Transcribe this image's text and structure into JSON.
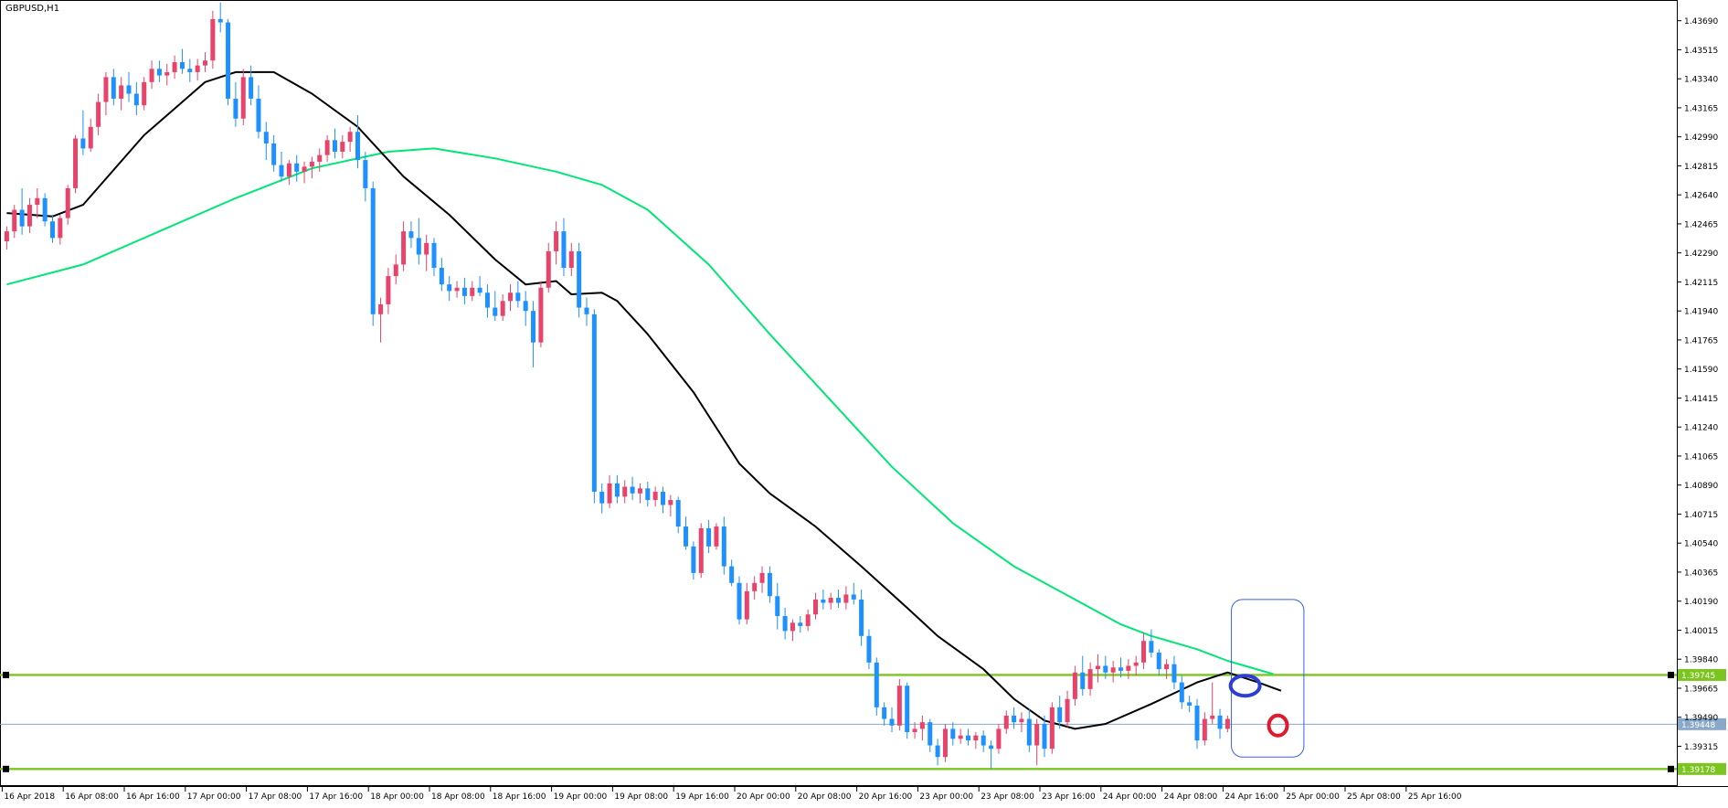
{
  "window": {
    "title": "GBPUSD,H1"
  },
  "colors": {
    "background": "#ffffff",
    "bull": "#e8436a",
    "bear": "#1e90ff",
    "ma_fast": "#000000",
    "ma_slow": "#00e676",
    "level_line": "#7cc520",
    "bid_line": "#8aa8c8",
    "annotation_box": "#3a5fe8",
    "annotation_circle_blue": "#2b3fd4",
    "annotation_circle_red": "#e01a2a",
    "grid_text": "#000000"
  },
  "chart_data": {
    "type": "candlestick",
    "symbol": "GBPUSD",
    "timeframe": "H1",
    "ylim": [
      1.39075,
      1.43815
    ],
    "y_ticks": [
      "1.43690",
      "1.43515",
      "1.43340",
      "1.43165",
      "1.42990",
      "1.42815",
      "1.42640",
      "1.42465",
      "1.42290",
      "1.42115",
      "1.41940",
      "1.41765",
      "1.41590",
      "1.41415",
      "1.41240",
      "1.41065",
      "1.40890",
      "1.40715",
      "1.40540",
      "1.40365",
      "1.40190",
      "1.40015",
      "1.39840",
      "1.39665",
      "1.39490",
      "1.39315"
    ],
    "x_ticks": [
      "16 Apr 2018",
      "16 Apr 08:00",
      "16 Apr 16:00",
      "17 Apr 00:00",
      "17 Apr 08:00",
      "17 Apr 16:00",
      "18 Apr 00:00",
      "18 Apr 08:00",
      "18 Apr 16:00",
      "19 Apr 00:00",
      "19 Apr 08:00",
      "19 Apr 16:00",
      "20 Apr 00:00",
      "20 Apr 08:00",
      "20 Apr 16:00",
      "23 Apr 00:00",
      "23 Apr 08:00",
      "23 Apr 16:00",
      "24 Apr 00:00",
      "24 Apr 08:00",
      "24 Apr 16:00",
      "25 Apr 00:00",
      "25 Apr 08:00",
      "25 Apr 16:00"
    ],
    "bars_per_tick": 8,
    "horizontal_levels": [
      {
        "value": 1.39745,
        "label": "1.39745",
        "kind": "level"
      },
      {
        "value": 1.39178,
        "label": "1.39178",
        "kind": "level"
      },
      {
        "value": 1.39448,
        "label": "1.39448",
        "kind": "bid"
      }
    ],
    "candles": [
      [
        1.4236,
        1.4245,
        1.4231,
        1.4242
      ],
      [
        1.4242,
        1.4258,
        1.4238,
        1.4255
      ],
      [
        1.4255,
        1.4268,
        1.424,
        1.4245
      ],
      [
        1.4245,
        1.4262,
        1.4241,
        1.4258
      ],
      [
        1.4258,
        1.4268,
        1.425,
        1.4262
      ],
      [
        1.4262,
        1.4265,
        1.4245,
        1.4248
      ],
      [
        1.4248,
        1.4252,
        1.4235,
        1.4238
      ],
      [
        1.4238,
        1.4252,
        1.4234,
        1.425
      ],
      [
        1.425,
        1.427,
        1.4246,
        1.4268
      ],
      [
        1.4268,
        1.43,
        1.4265,
        1.4298
      ],
      [
        1.4298,
        1.4315,
        1.4288,
        1.4292
      ],
      [
        1.4292,
        1.431,
        1.429,
        1.4305
      ],
      [
        1.4305,
        1.4325,
        1.43,
        1.432
      ],
      [
        1.432,
        1.4338,
        1.4312,
        1.4335
      ],
      [
        1.4335,
        1.434,
        1.4318,
        1.4322
      ],
      [
        1.4322,
        1.4335,
        1.4315,
        1.433
      ],
      [
        1.433,
        1.4338,
        1.432,
        1.4325
      ],
      [
        1.4325,
        1.4332,
        1.4312,
        1.4318
      ],
      [
        1.4318,
        1.4335,
        1.4315,
        1.4332
      ],
      [
        1.4332,
        1.4345,
        1.4328,
        1.434
      ],
      [
        1.434,
        1.4345,
        1.4332,
        1.4336
      ],
      [
        1.4336,
        1.4343,
        1.433,
        1.4338
      ],
      [
        1.4338,
        1.4348,
        1.4334,
        1.4344
      ],
      [
        1.4344,
        1.4352,
        1.4337,
        1.434
      ],
      [
        1.434,
        1.4346,
        1.4332,
        1.4338
      ],
      [
        1.4338,
        1.4346,
        1.4333,
        1.4342
      ],
      [
        1.4342,
        1.435,
        1.4338,
        1.4345
      ],
      [
        1.4345,
        1.4375,
        1.434,
        1.437
      ],
      [
        1.437,
        1.438,
        1.4362,
        1.4368
      ],
      [
        1.4368,
        1.437,
        1.4318,
        1.4322
      ],
      [
        1.4322,
        1.4332,
        1.4305,
        1.431
      ],
      [
        1.431,
        1.434,
        1.4306,
        1.4335
      ],
      [
        1.4335,
        1.4342,
        1.4318,
        1.4322
      ],
      [
        1.4322,
        1.433,
        1.4298,
        1.4302
      ],
      [
        1.4302,
        1.4308,
        1.4285,
        1.4295
      ],
      [
        1.4295,
        1.43,
        1.4278,
        1.4282
      ],
      [
        1.4282,
        1.429,
        1.4272,
        1.4275
      ],
      [
        1.4275,
        1.4285,
        1.427,
        1.4283
      ],
      [
        1.4283,
        1.4288,
        1.4272,
        1.4278
      ],
      [
        1.4278,
        1.4284,
        1.4271,
        1.4281
      ],
      [
        1.4281,
        1.4287,
        1.4274,
        1.4284
      ],
      [
        1.4284,
        1.4292,
        1.4278,
        1.4288
      ],
      [
        1.4288,
        1.43,
        1.4284,
        1.4297
      ],
      [
        1.4297,
        1.4304,
        1.4286,
        1.429
      ],
      [
        1.429,
        1.43,
        1.4286,
        1.4296
      ],
      [
        1.4296,
        1.4305,
        1.429,
        1.4302
      ],
      [
        1.4302,
        1.4312,
        1.428,
        1.4285
      ],
      [
        1.4285,
        1.429,
        1.426,
        1.4268
      ],
      [
        1.4268,
        1.4272,
        1.4185,
        1.4192
      ],
      [
        1.4192,
        1.4202,
        1.4175,
        1.4198
      ],
      [
        1.4198,
        1.422,
        1.4192,
        1.4215
      ],
      [
        1.4215,
        1.4228,
        1.421,
        1.4222
      ],
      [
        1.4222,
        1.4248,
        1.4218,
        1.4242
      ],
      [
        1.4242,
        1.4248,
        1.4232,
        1.4238
      ],
      [
        1.4238,
        1.425,
        1.4222,
        1.4228
      ],
      [
        1.4228,
        1.424,
        1.4218,
        1.4235
      ],
      [
        1.4235,
        1.4238,
        1.4215,
        1.422
      ],
      [
        1.422,
        1.4226,
        1.4206,
        1.421
      ],
      [
        1.421,
        1.4215,
        1.42,
        1.4206
      ],
      [
        1.4206,
        1.4212,
        1.4202,
        1.4208
      ],
      [
        1.4208,
        1.4214,
        1.4198,
        1.4203
      ],
      [
        1.4203,
        1.4212,
        1.42,
        1.4208
      ],
      [
        1.4208,
        1.4215,
        1.4203,
        1.4205
      ],
      [
        1.4205,
        1.421,
        1.419,
        1.4196
      ],
      [
        1.4196,
        1.4206,
        1.4188,
        1.4191
      ],
      [
        1.4191,
        1.4204,
        1.4188,
        1.42
      ],
      [
        1.42,
        1.421,
        1.4194,
        1.4205
      ],
      [
        1.4205,
        1.4212,
        1.4196,
        1.42
      ],
      [
        1.42,
        1.4206,
        1.4185,
        1.4194
      ],
      [
        1.4194,
        1.42,
        1.416,
        1.4175
      ],
      [
        1.4175,
        1.4212,
        1.4172,
        1.4208
      ],
      [
        1.4208,
        1.4235,
        1.4205,
        1.423
      ],
      [
        1.423,
        1.4248,
        1.4222,
        1.4242
      ],
      [
        1.4242,
        1.425,
        1.4215,
        1.422
      ],
      [
        1.422,
        1.4235,
        1.4215,
        1.423
      ],
      [
        1.423,
        1.4235,
        1.419,
        1.4196
      ],
      [
        1.4196,
        1.4202,
        1.4185,
        1.4192
      ],
      [
        1.4192,
        1.4195,
        1.4078,
        1.4085
      ],
      [
        1.4085,
        1.409,
        1.4072,
        1.4078
      ],
      [
        1.4078,
        1.4095,
        1.4075,
        1.409
      ],
      [
        1.409,
        1.4095,
        1.4078,
        1.4082
      ],
      [
        1.4082,
        1.4092,
        1.4078,
        1.4088
      ],
      [
        1.4088,
        1.4094,
        1.408,
        1.4084
      ],
      [
        1.4084,
        1.409,
        1.4078,
        1.4087
      ],
      [
        1.4087,
        1.4091,
        1.4076,
        1.408
      ],
      [
        1.408,
        1.4088,
        1.4076,
        1.4085
      ],
      [
        1.4085,
        1.4088,
        1.4072,
        1.4077
      ],
      [
        1.4077,
        1.4083,
        1.407,
        1.408
      ],
      [
        1.408,
        1.4082,
        1.406,
        1.4064
      ],
      [
        1.4064,
        1.407,
        1.405,
        1.4052
      ],
      [
        1.4052,
        1.4055,
        1.4032,
        1.4036
      ],
      [
        1.4036,
        1.4066,
        1.4033,
        1.4063
      ],
      [
        1.4063,
        1.4068,
        1.4048,
        1.4052
      ],
      [
        1.4052,
        1.4066,
        1.405,
        1.4064
      ],
      [
        1.4064,
        1.407,
        1.4035,
        1.404
      ],
      [
        1.404,
        1.4044,
        1.4028,
        1.403
      ],
      [
        1.403,
        1.4034,
        1.4005,
        1.4008
      ],
      [
        1.4008,
        1.403,
        1.4005,
        1.4025
      ],
      [
        1.4025,
        1.4034,
        1.402,
        1.403
      ],
      [
        1.403,
        1.404,
        1.4024,
        1.4036
      ],
      [
        1.4036,
        1.404,
        1.4018,
        1.4022
      ],
      [
        1.4022,
        1.403,
        1.4002,
        1.401
      ],
      [
        1.401,
        1.4015,
        1.3996,
        1.4001
      ],
      [
        1.4001,
        1.4008,
        1.3995,
        1.4006
      ],
      [
        1.4006,
        1.401,
        1.4,
        1.4004
      ],
      [
        1.4004,
        1.4014,
        1.4001,
        1.4011
      ],
      [
        1.4011,
        1.4024,
        1.4008,
        1.402
      ],
      [
        1.402,
        1.4026,
        1.4014,
        1.4018
      ],
      [
        1.4018,
        1.4024,
        1.4014,
        1.4021
      ],
      [
        1.4021,
        1.4026,
        1.4015,
        1.4018
      ],
      [
        1.4018,
        1.4028,
        1.4014,
        1.4023
      ],
      [
        1.4023,
        1.403,
        1.4017,
        1.402
      ],
      [
        1.402,
        1.4026,
        1.3992,
        1.3998
      ],
      [
        1.3998,
        1.4002,
        1.3978,
        1.3982
      ],
      [
        1.3982,
        1.3985,
        1.395,
        1.3955
      ],
      [
        1.3955,
        1.3958,
        1.3944,
        1.3948
      ],
      [
        1.3948,
        1.3955,
        1.394,
        1.3944
      ],
      [
        1.3944,
        1.3972,
        1.3941,
        1.3968
      ],
      [
        1.3968,
        1.397,
        1.3936,
        1.394
      ],
      [
        1.394,
        1.3946,
        1.3936,
        1.3942
      ],
      [
        1.3942,
        1.395,
        1.3935,
        1.3946
      ],
      [
        1.3946,
        1.3948,
        1.3928,
        1.3932
      ],
      [
        1.3932,
        1.3936,
        1.392,
        1.3925
      ],
      [
        1.3925,
        1.3945,
        1.3922,
        1.3942
      ],
      [
        1.3942,
        1.3946,
        1.3932,
        1.3936
      ],
      [
        1.3936,
        1.3942,
        1.3933,
        1.3938
      ],
      [
        1.3938,
        1.3942,
        1.3932,
        1.3935
      ],
      [
        1.3935,
        1.394,
        1.393,
        1.3938
      ],
      [
        1.3938,
        1.3941,
        1.3928,
        1.3932
      ],
      [
        1.3932,
        1.3935,
        1.3918,
        1.393
      ],
      [
        1.393,
        1.3945,
        1.3927,
        1.3942
      ],
      [
        1.3942,
        1.3953,
        1.3939,
        1.395
      ],
      [
        1.395,
        1.3955,
        1.3942,
        1.3946
      ],
      [
        1.3946,
        1.3952,
        1.394,
        1.3948
      ],
      [
        1.3948,
        1.3954,
        1.3928,
        1.3932
      ],
      [
        1.3932,
        1.3948,
        1.392,
        1.3945
      ],
      [
        1.3945,
        1.395,
        1.3925,
        1.393
      ],
      [
        1.393,
        1.3958,
        1.3927,
        1.3955
      ],
      [
        1.3955,
        1.3962,
        1.3942,
        1.3946
      ],
      [
        1.3946,
        1.3965,
        1.3943,
        1.396
      ],
      [
        1.396,
        1.398,
        1.3956,
        1.3976
      ],
      [
        1.3976,
        1.3986,
        1.3962,
        1.3966
      ],
      [
        1.3966,
        1.3982,
        1.3962,
        1.3978
      ],
      [
        1.3978,
        1.3987,
        1.397,
        1.398
      ],
      [
        1.398,
        1.3986,
        1.3972,
        1.3976
      ],
      [
        1.3976,
        1.3983,
        1.397,
        1.3979
      ],
      [
        1.3979,
        1.3985,
        1.3973,
        1.3977
      ],
      [
        1.3977,
        1.3984,
        1.3972,
        1.398
      ],
      [
        1.398,
        1.3986,
        1.3974,
        1.3982
      ],
      [
        1.3982,
        1.4,
        1.3978,
        1.3995
      ],
      [
        1.3995,
        1.4002,
        1.3985,
        1.3988
      ],
      [
        1.3988,
        1.399,
        1.3974,
        1.3978
      ],
      [
        1.3978,
        1.3984,
        1.3972,
        1.3981
      ],
      [
        1.3981,
        1.3986,
        1.3966,
        1.397
      ],
      [
        1.397,
        1.3974,
        1.3954,
        1.3958
      ],
      [
        1.3958,
        1.3962,
        1.3952,
        1.3956
      ],
      [
        1.3956,
        1.396,
        1.393,
        1.3935
      ],
      [
        1.3935,
        1.3952,
        1.3932,
        1.3948
      ],
      [
        1.3948,
        1.397,
        1.3945,
        1.395
      ],
      [
        1.395,
        1.3954,
        1.3936,
        1.3942
      ],
      [
        1.3942,
        1.395,
        1.394,
        1.3948
      ]
    ],
    "ma_fast": [
      [
        0,
        1.4253
      ],
      [
        6,
        1.4251
      ],
      [
        10,
        1.4258
      ],
      [
        18,
        1.43
      ],
      [
        26,
        1.4332
      ],
      [
        30,
        1.4338
      ],
      [
        35,
        1.4338
      ],
      [
        40,
        1.4325
      ],
      [
        46,
        1.4305
      ],
      [
        48,
        1.4295
      ],
      [
        52,
        1.4275
      ],
      [
        58,
        1.4252
      ],
      [
        64,
        1.4225
      ],
      [
        68,
        1.421
      ],
      [
        72,
        1.4212
      ],
      [
        74,
        1.4204
      ],
      [
        78,
        1.4205
      ],
      [
        80,
        1.42
      ],
      [
        84,
        1.418
      ],
      [
        90,
        1.4145
      ],
      [
        96,
        1.4102
      ],
      [
        100,
        1.4084
      ],
      [
        106,
        1.4064
      ],
      [
        112,
        1.404
      ],
      [
        118,
        1.4015
      ],
      [
        122,
        1.3998
      ],
      [
        128,
        1.3978
      ],
      [
        132,
        1.396
      ],
      [
        136,
        1.3947
      ],
      [
        140,
        1.3942
      ],
      [
        144,
        1.3945
      ],
      [
        150,
        1.3957
      ],
      [
        156,
        1.397
      ],
      [
        160,
        1.3976
      ],
      [
        164,
        1.397
      ],
      [
        167,
        1.3965
      ]
    ],
    "ma_slow": [
      [
        0,
        1.421
      ],
      [
        10,
        1.4222
      ],
      [
        20,
        1.4242
      ],
      [
        30,
        1.4262
      ],
      [
        40,
        1.428
      ],
      [
        50,
        1.429
      ],
      [
        56,
        1.4292
      ],
      [
        64,
        1.4286
      ],
      [
        72,
        1.4278
      ],
      [
        78,
        1.427
      ],
      [
        84,
        1.4255
      ],
      [
        92,
        1.4222
      ],
      [
        100,
        1.418
      ],
      [
        108,
        1.414
      ],
      [
        116,
        1.41
      ],
      [
        124,
        1.4066
      ],
      [
        132,
        1.404
      ],
      [
        140,
        1.402
      ],
      [
        146,
        1.4005
      ],
      [
        150,
        1.3998
      ],
      [
        156,
        1.399
      ],
      [
        160,
        1.3983
      ],
      [
        166,
        1.3975
      ]
    ]
  },
  "annotations": [
    {
      "type": "rectangle",
      "x_from": 160.5,
      "x_to": 170,
      "y_from": 1.3925,
      "y_to": 1.402
    },
    {
      "type": "ellipse",
      "color": "blue",
      "x": 162.3,
      "y": 1.3968
    },
    {
      "type": "ellipse",
      "color": "red",
      "x": 166.6,
      "y": 1.3944
    }
  ]
}
